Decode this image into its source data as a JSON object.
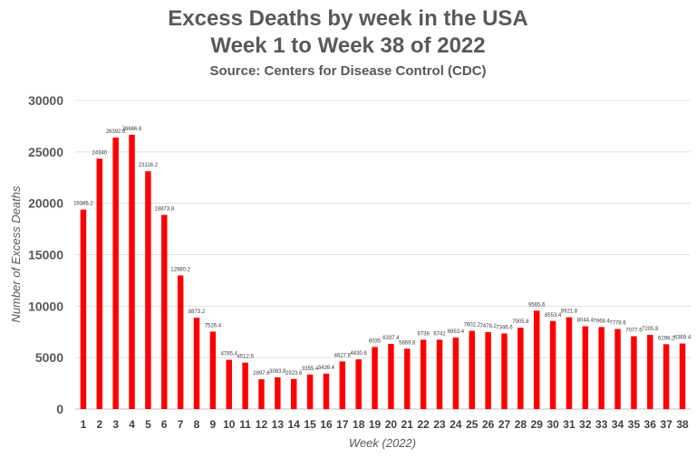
{
  "chart_data": {
    "type": "bar",
    "title": "Excess Deaths by week in the USA",
    "subtitle": "Week 1 to Week 38 of 2022",
    "source": "Source: Centers for Disease Control (CDC)",
    "xlabel": "Week (2022)",
    "ylabel": "Number of Excess Deaths",
    "ylim": [
      0,
      30000
    ],
    "yticks": [
      "0",
      "5000",
      "10000",
      "15000",
      "20000",
      "25000",
      "30000"
    ],
    "grid": true,
    "bar_color": "#ff0000",
    "categories": [
      "1",
      "2",
      "3",
      "4",
      "5",
      "6",
      "7",
      "8",
      "9",
      "10",
      "11",
      "12",
      "13",
      "14",
      "15",
      "16",
      "17",
      "18",
      "19",
      "20",
      "21",
      "22",
      "23",
      "24",
      "25",
      "26",
      "27",
      "28",
      "29",
      "30",
      "31",
      "32",
      "33",
      "34",
      "35",
      "36",
      "37",
      "38"
    ],
    "values": [
      19385.2,
      24340,
      26392.6,
      26666.6,
      23116.2,
      18873.8,
      12980.2,
      8873.2,
      7526.4,
      4785.4,
      4512.6,
      2897.6,
      3083.8,
      2923.6,
      3355.4,
      3439.4,
      4627.6,
      4830.8,
      6035,
      6337.4,
      5869.8,
      6738,
      6742,
      6953.4,
      7602.2,
      7478.2,
      7346.6,
      7905.8,
      9565.6,
      8553.4,
      8921.8,
      8044.4,
      7968.4,
      7778.6,
      7077.6,
      7205.8,
      6299.2,
      6369.4
    ],
    "data_labels": [
      "19385.2",
      "24340",
      "26392.6",
      "26666.6",
      "23116.2",
      "18873.8",
      "12980.2",
      "8873.2",
      "7526.4",
      "4785.4",
      "4512.6",
      "2897.6",
      "3083.8",
      "2923.6",
      "3355.4",
      "3439.4",
      "4627.6",
      "4830.8",
      "6035",
      "6337.4",
      "5869.8",
      "6738",
      "6742",
      "6953.4",
      "7602.2",
      "7478.2",
      "7346.6",
      "7905.8",
      "9565.6",
      "8553.4",
      "8921.8",
      "8044.4",
      "7968.4",
      "7778.6",
      "7077.6",
      "7205.8",
      "6299.2",
      "6369.4"
    ]
  }
}
